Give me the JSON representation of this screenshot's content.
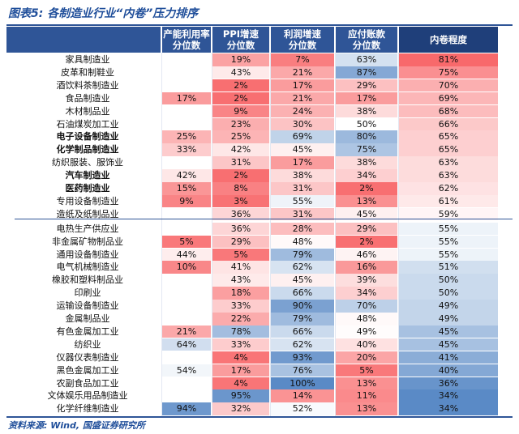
{
  "title": "图表5: 各制造业行业“内卷”压力排序",
  "source": "资料来源: Wind, 国盛证券研究所",
  "columns": [
    {
      "line1": "产能利用率",
      "line2": "分位数"
    },
    {
      "line1": "PPI增速",
      "line2": "分位数"
    },
    {
      "line1": "利润增速",
      "line2": "分位数"
    },
    {
      "line1": "应付账款",
      "line2": "分位数"
    },
    {
      "line1": "内卷程度",
      "line2": ""
    }
  ],
  "rows": [
    {
      "name": "家具制造业",
      "bold": false,
      "v": [
        null,
        19,
        7,
        63,
        81
      ]
    },
    {
      "name": "皮革和制鞋业",
      "bold": false,
      "v": [
        null,
        43,
        21,
        87,
        75
      ]
    },
    {
      "name": "酒饮料茶制造业",
      "bold": false,
      "v": [
        null,
        2,
        17,
        29,
        70
      ]
    },
    {
      "name": "食品制造业",
      "bold": false,
      "v": [
        17,
        2,
        21,
        17,
        69
      ]
    },
    {
      "name": "木材制品业",
      "bold": false,
      "v": [
        null,
        9,
        24,
        38,
        68
      ]
    },
    {
      "name": "石油煤炭加工业",
      "bold": false,
      "v": [
        null,
        23,
        30,
        50,
        66
      ]
    },
    {
      "name": "电子设备制造业",
      "bold": true,
      "v": [
        25,
        25,
        69,
        80,
        65
      ]
    },
    {
      "name": "化学制品制造业",
      "bold": true,
      "v": [
        33,
        42,
        45,
        75,
        65
      ]
    },
    {
      "name": "纺织服装、服饰业",
      "bold": false,
      "v": [
        null,
        31,
        17,
        38,
        63
      ]
    },
    {
      "name": "汽车制造业",
      "bold": true,
      "v": [
        42,
        2,
        38,
        34,
        63
      ]
    },
    {
      "name": "医药制造业",
      "bold": true,
      "v": [
        15,
        8,
        31,
        2,
        62
      ]
    },
    {
      "name": "专用设备制造业",
      "bold": false,
      "v": [
        9,
        3,
        55,
        13,
        61
      ]
    },
    {
      "name": "造纸及纸制品业",
      "bold": false,
      "v": [
        null,
        36,
        31,
        45,
        59
      ]
    },
    {
      "name": "电热生产供应业",
      "bold": false,
      "v": [
        null,
        36,
        28,
        29,
        55
      ]
    },
    {
      "name": "非金属矿物制品业",
      "bold": false,
      "v": [
        5,
        29,
        48,
        2,
        55
      ]
    },
    {
      "name": "通用设备制造业",
      "bold": false,
      "v": [
        44,
        5,
        79,
        46,
        55
      ]
    },
    {
      "name": "电气机械制造业",
      "bold": false,
      "v": [
        10,
        41,
        62,
        16,
        51
      ]
    },
    {
      "name": "橡胶和塑料制品业",
      "bold": false,
      "v": [
        null,
        43,
        45,
        39,
        50
      ]
    },
    {
      "name": "印刷业",
      "bold": false,
      "v": [
        null,
        18,
        66,
        34,
        50
      ]
    },
    {
      "name": "运输设备制造业",
      "bold": false,
      "v": [
        null,
        33,
        90,
        70,
        49
      ]
    },
    {
      "name": "金属制品业",
      "bold": false,
      "v": [
        null,
        22,
        79,
        48,
        49
      ]
    },
    {
      "name": "有色金属加工业",
      "bold": false,
      "v": [
        21,
        78,
        66,
        49,
        45
      ]
    },
    {
      "name": "纺织业",
      "bold": false,
      "v": [
        64,
        33,
        62,
        40,
        45
      ]
    },
    {
      "name": "仪器仪表制造业",
      "bold": false,
      "v": [
        null,
        4,
        93,
        20,
        41
      ]
    },
    {
      "name": "黑色金属加工业",
      "bold": false,
      "v": [
        54,
        17,
        76,
        5,
        40
      ]
    },
    {
      "name": "农副食品加工业",
      "bold": false,
      "v": [
        null,
        4,
        100,
        13,
        36
      ]
    },
    {
      "name": "文体娱乐用品制造业",
      "bold": false,
      "v": [
        null,
        95,
        14,
        11,
        34
      ]
    },
    {
      "name": "化学纤维制造业",
      "bold": false,
      "v": [
        94,
        32,
        52,
        13,
        34
      ]
    }
  ],
  "colors": {
    "header_bg": "#2f5597",
    "red_extreme": "#f8696b",
    "blue_extreme": "#5a8ac6",
    "neutral": "#ffffff"
  }
}
